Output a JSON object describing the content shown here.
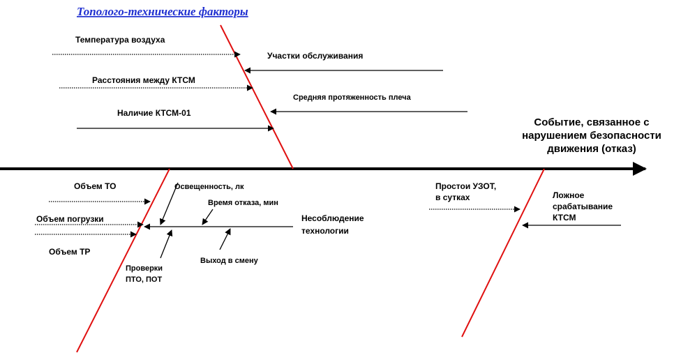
{
  "title": "Тополого-технические  факторы",
  "effect": [
    "Событие, связанное  с",
    "нарушением безопасности",
    "движения (отказ)"
  ],
  "causes": [
    [
      "Температура воздуха"
    ],
    [
      "Участки обслуживания"
    ],
    [
      "Расстояния между КТСМ"
    ],
    [
      "Средняя протяженность плеча"
    ],
    [
      "Наличие КТСМ-01"
    ],
    [
      "Объем ТО"
    ],
    [
      "Объем погрузки"
    ],
    [
      "Объем ТР"
    ],
    [
      "Освещенность, лк"
    ],
    [
      "Время отказа, мин"
    ],
    [
      "Несоблюдение",
      "технологии"
    ],
    [
      "Проверки",
      "ПТО, ПОТ"
    ],
    [
      "Выход в смену"
    ],
    [
      "Простои УЗОТ,",
      "в сутках"
    ],
    [
      "Ложное",
      "срабатывание",
      "КТСМ"
    ]
  ]
}
